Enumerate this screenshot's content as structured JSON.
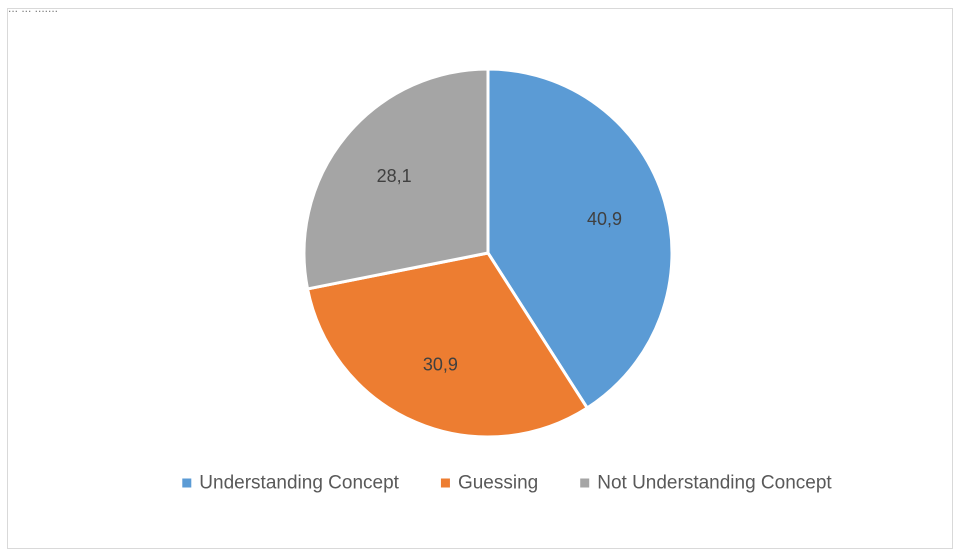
{
  "top_fragment": "... ... .......",
  "chart_data": {
    "type": "pie",
    "title": "",
    "slices": [
      {
        "label": "Understanding Concept",
        "value": 40.9,
        "value_label": "40,9",
        "color": "#5b9bd5"
      },
      {
        "label": "Guessing",
        "value": 30.9,
        "value_label": "30,9",
        "color": "#ed7d31"
      },
      {
        "label": "Not Understanding Concept",
        "value": 28.1,
        "value_label": "28,1",
        "color": "#a5a5a5"
      }
    ],
    "legend_position": "bottom"
  }
}
